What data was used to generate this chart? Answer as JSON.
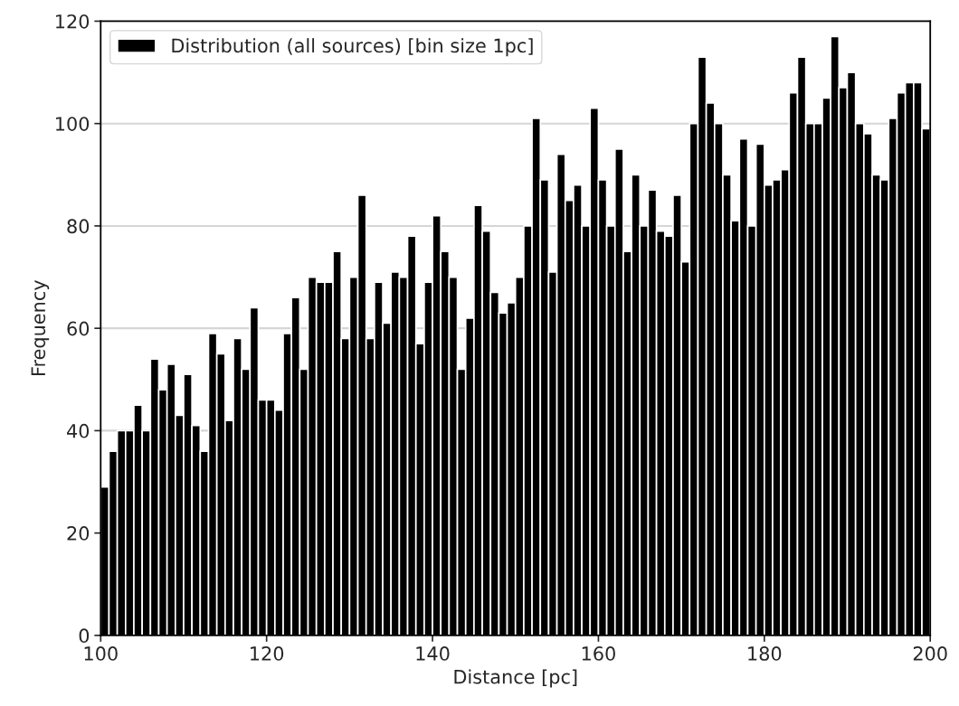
{
  "chart_data": {
    "type": "histogram",
    "xlabel": "Distance [pc]",
    "ylabel": "Frequency",
    "bins": [
      100,
      101,
      102,
      103,
      104,
      105,
      106,
      107,
      108,
      109,
      110,
      111,
      112,
      113,
      114,
      115,
      116,
      117,
      118,
      119,
      120,
      121,
      122,
      123,
      124,
      125,
      126,
      127,
      128,
      129,
      130,
      131,
      132,
      133,
      134,
      135,
      136,
      137,
      138,
      139,
      140,
      141,
      142,
      143,
      144,
      145,
      146,
      147,
      148,
      149,
      150,
      151,
      152,
      153,
      154,
      155,
      156,
      157,
      158,
      159,
      160,
      161,
      162,
      163,
      164,
      165,
      166,
      167,
      168,
      169,
      170,
      171,
      172,
      173,
      174,
      175,
      176,
      177,
      178,
      179,
      180,
      181,
      182,
      183,
      184,
      185,
      186,
      187,
      188,
      189,
      190,
      191,
      192,
      193,
      194,
      195,
      196,
      197,
      198,
      199,
      200
    ],
    "series": [
      {
        "name": "Distribution (all sources) [bin size 1pc]",
        "color": "#000000",
        "values": [
          29,
          36,
          40,
          40,
          45,
          40,
          54,
          48,
          53,
          43,
          51,
          41,
          36,
          59,
          55,
          42,
          58,
          52,
          64,
          46,
          46,
          44,
          59,
          66,
          52,
          70,
          69,
          69,
          75,
          58,
          70,
          86,
          58,
          69,
          61,
          71,
          70,
          78,
          57,
          69,
          82,
          75,
          70,
          52,
          62,
          84,
          79,
          67,
          63,
          65,
          70,
          80,
          101,
          89,
          71,
          94,
          85,
          88,
          80,
          103,
          89,
          80,
          95,
          75,
          90,
          80,
          87,
          79,
          78,
          86,
          73,
          100,
          113,
          104,
          100,
          90,
          81,
          97,
          80,
          96,
          88,
          89,
          91,
          106,
          113,
          100,
          100,
          105,
          117,
          107,
          110,
          100,
          98,
          90,
          89,
          101,
          106,
          108,
          108,
          99
        ]
      }
    ],
    "xlim": [
      100,
      200
    ],
    "xticks": [
      100,
      120,
      140,
      160,
      180,
      200
    ],
    "ylim": [
      0,
      120
    ],
    "yticks": [
      0,
      20,
      40,
      60,
      80,
      100,
      120
    ],
    "grid": "y",
    "legend": "top left"
  }
}
